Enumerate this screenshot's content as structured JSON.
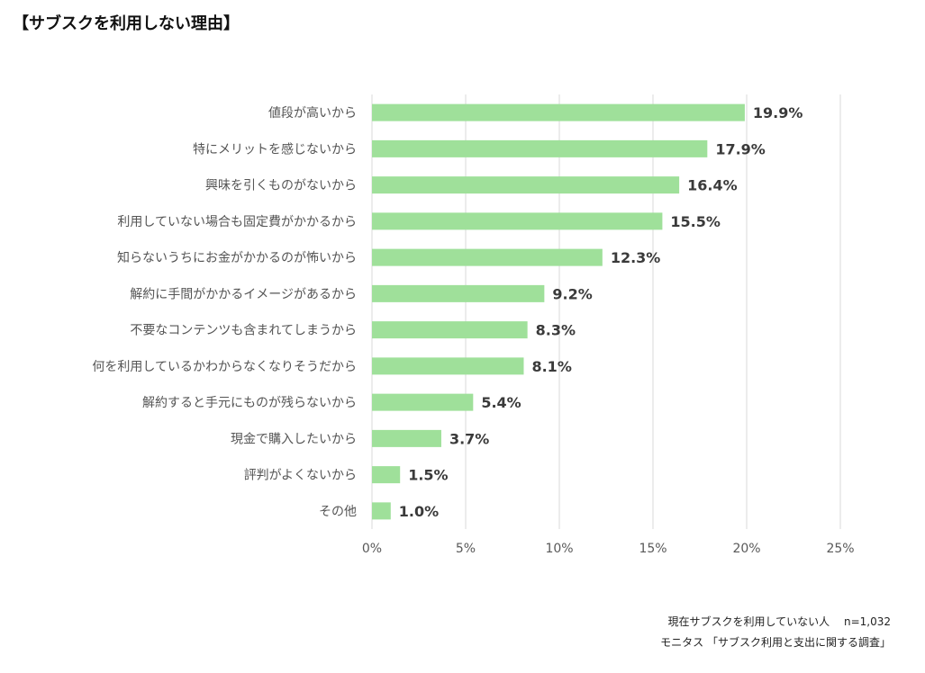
{
  "title": "【サブスクを利用しない理由】",
  "footer": {
    "sample": "現在サブスクを利用していない人　 n=1,032",
    "source": "モニタス 「サブスク利用と支出に関する調査」"
  },
  "colors": {
    "bar": "#9fe09a",
    "grid": "#d9d9d9",
    "axis": "#d9d9d9"
  },
  "chart_data": {
    "type": "bar",
    "orientation": "horizontal",
    "title": "【サブスクを利用しない理由】",
    "xlabel": "",
    "ylabel": "",
    "xlim": [
      0,
      25
    ],
    "ticks": [
      0,
      5,
      10,
      15,
      20,
      25
    ],
    "tick_labels": [
      "0%",
      "5%",
      "10%",
      "15%",
      "20%",
      "25%"
    ],
    "grid": true,
    "categories": [
      "値段が高いから",
      "特にメリットを感じないから",
      "興味を引くものがないから",
      "利用していない場合も固定費がかかるから",
      "知らないうちにお金がかかるのが怖いから",
      "解約に手間がかかるイメージがあるから",
      "不要なコンテンツも含まれてしまうから",
      "何を利用しているかわからなくなりそうだから",
      "解約すると手元にものが残らないから",
      "現金で購入したいから",
      "評判がよくないから",
      "その他"
    ],
    "values": [
      19.9,
      17.9,
      16.4,
      15.5,
      12.3,
      9.2,
      8.3,
      8.1,
      5.4,
      3.7,
      1.5,
      1.0
    ],
    "value_labels": [
      "19.9%",
      "17.9%",
      "16.4%",
      "15.5%",
      "12.3%",
      "9.2%",
      "8.3%",
      "8.1%",
      "5.4%",
      "3.7%",
      "1.5%",
      "1.0%"
    ]
  }
}
